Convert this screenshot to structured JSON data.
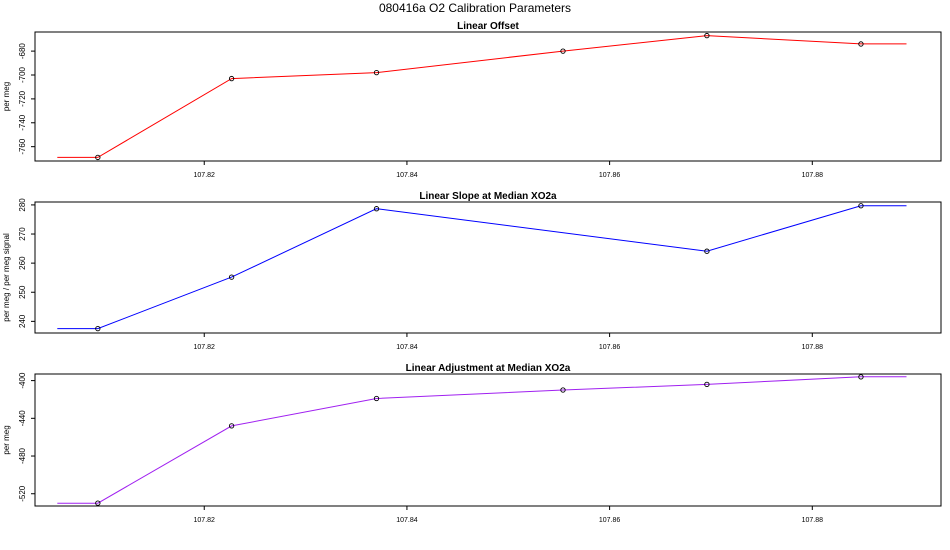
{
  "figure": {
    "main_title": "080416a   O2 Calibration Parameters"
  },
  "chart_data": [
    {
      "type": "line",
      "title": "Linear Offset",
      "ylabel": "per meg",
      "xlabel": "",
      "x": [
        107.8095,
        107.8227,
        107.837,
        107.8554,
        107.8696,
        107.8848
      ],
      "values": [
        -769,
        -703,
        -698,
        -680,
        -667,
        -674
      ],
      "line_extends_to_x": [
        107.8055,
        107.8893
      ],
      "color": "#ff0000",
      "xlim": [
        107.8033,
        107.8927
      ],
      "ylim": [
        -772,
        -664
      ],
      "xticks": [
        107.82,
        107.84,
        107.86,
        107.88
      ],
      "xtick_labels": [
        "107.82",
        "107.84",
        "107.86",
        "107.88"
      ],
      "yticks": [
        -760,
        -740,
        -720,
        -700,
        -680
      ],
      "ytick_labels": [
        "-760",
        "-740",
        "-720",
        "-700",
        "-680"
      ],
      "grid": false
    },
    {
      "type": "line",
      "title": "Linear Slope at Median XO2a",
      "ylabel": "per meg / per meg signal",
      "xlabel": "",
      "x": [
        107.8095,
        107.8227,
        107.837,
        107.8696,
        107.8848
      ],
      "values": [
        237.5,
        255.2,
        278.7,
        264.1,
        279.7
      ],
      "line_extends_to_x": [
        107.8055,
        107.8893
      ],
      "color": "#0000ff",
      "xlim": [
        107.8033,
        107.8927
      ],
      "ylim": [
        236,
        281
      ],
      "xticks": [
        107.82,
        107.84,
        107.86,
        107.88
      ],
      "xtick_labels": [
        "107.82",
        "107.84",
        "107.86",
        "107.88"
      ],
      "yticks": [
        240,
        250,
        260,
        270,
        280
      ],
      "ytick_labels": [
        "240",
        "250",
        "260",
        "270",
        "280"
      ],
      "grid": false
    },
    {
      "type": "line",
      "title": "Linear Adjustment at Median XO2a",
      "ylabel": "per meg",
      "xlabel": "",
      "x": [
        107.8095,
        107.8227,
        107.837,
        107.8554,
        107.8696,
        107.8848
      ],
      "values": [
        -530,
        -448,
        -419,
        -410,
        -404,
        -396
      ],
      "line_extends_to_x": [
        107.8055,
        107.8893
      ],
      "color": "#a020f0",
      "xlim": [
        107.8033,
        107.8927
      ],
      "ylim": [
        -533,
        -393
      ],
      "xticks": [
        107.82,
        107.84,
        107.86,
        107.88
      ],
      "xtick_labels": [
        "107.82",
        "107.84",
        "107.86",
        "107.88"
      ],
      "yticks": [
        -520,
        -480,
        -440,
        -400
      ],
      "ytick_labels": [
        "-520",
        "-480",
        "-440",
        "-400"
      ],
      "grid": false
    }
  ]
}
